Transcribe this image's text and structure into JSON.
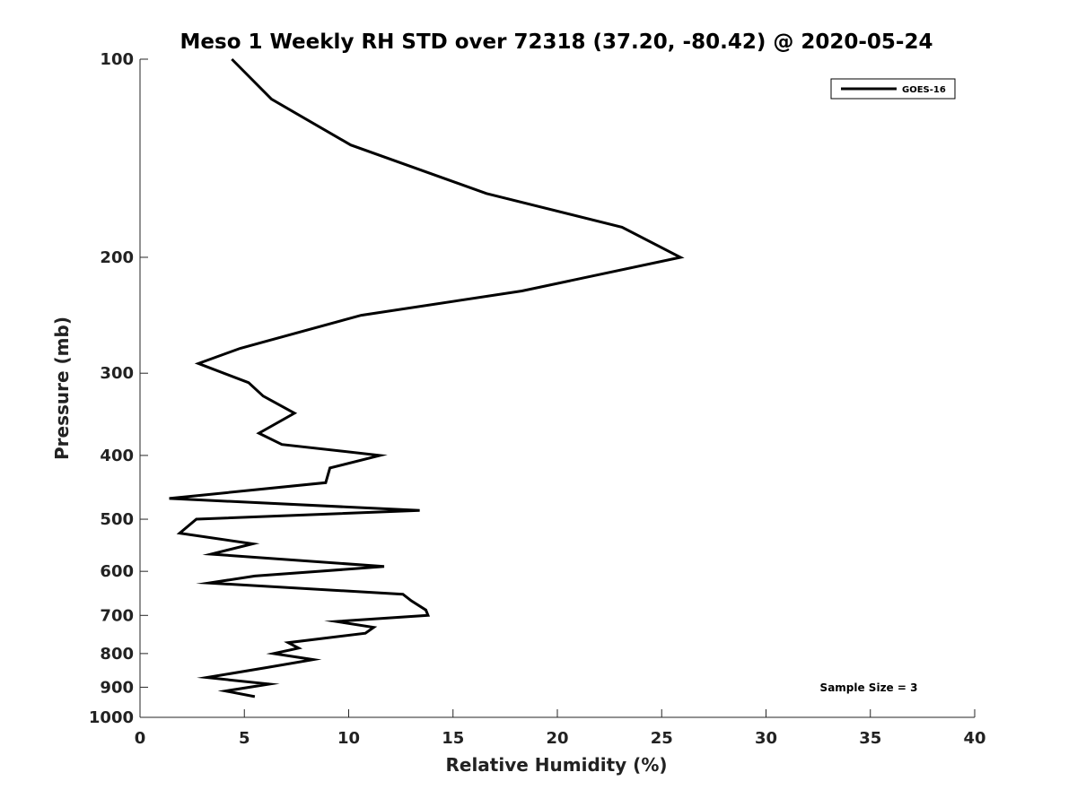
{
  "chart_data": {
    "type": "line",
    "title": "Meso 1 Weekly RH STD over 72318 (37.20, -80.42) @ 2020-05-24",
    "xlabel": "Relative Humidity (%)",
    "ylabel": "Pressure (mb)",
    "xlim": [
      0,
      40
    ],
    "ylim": [
      100,
      1000
    ],
    "y_scale": "log",
    "y_reversed": true,
    "grid": false,
    "x_ticks": [
      0,
      5,
      10,
      15,
      20,
      25,
      30,
      35,
      40
    ],
    "y_ticks": [
      100,
      200,
      300,
      400,
      500,
      600,
      700,
      800,
      900,
      1000
    ],
    "legend": {
      "position": "top-right",
      "entries": [
        "GOES-16"
      ]
    },
    "annotations": [
      {
        "text": "Sample Size = 3",
        "position": "bottom-right"
      }
    ],
    "series": [
      {
        "name": "GOES-16",
        "color": "#000000",
        "x": [
          4.4,
          6.3,
          10.1,
          16.6,
          23.1,
          25.9,
          18.3,
          10.6,
          4.8,
          2.8,
          5.2,
          5.9,
          7.4,
          5.7,
          6.8,
          11.5,
          9.1,
          8.9,
          1.4,
          13.4,
          2.7,
          1.9,
          5.4,
          3.4,
          11.7,
          5.5,
          3.3,
          12.6,
          13,
          13.7,
          13.8,
          9.4,
          11.2,
          10.8,
          7.1,
          7.6,
          6.4,
          8.3,
          6.1,
          3.2,
          6.2,
          4.1,
          5.5
        ],
        "y": [
          100,
          115,
          135,
          160,
          180,
          200,
          225,
          245,
          275,
          290,
          310,
          325,
          345,
          370,
          385,
          400,
          418,
          440,
          465,
          485,
          500,
          525,
          545,
          565,
          590,
          610,
          625,
          650,
          665,
          687,
          700,
          715,
          730,
          745,
          770,
          785,
          800,
          817,
          840,
          870,
          890,
          912,
          930
        ]
      }
    ]
  }
}
